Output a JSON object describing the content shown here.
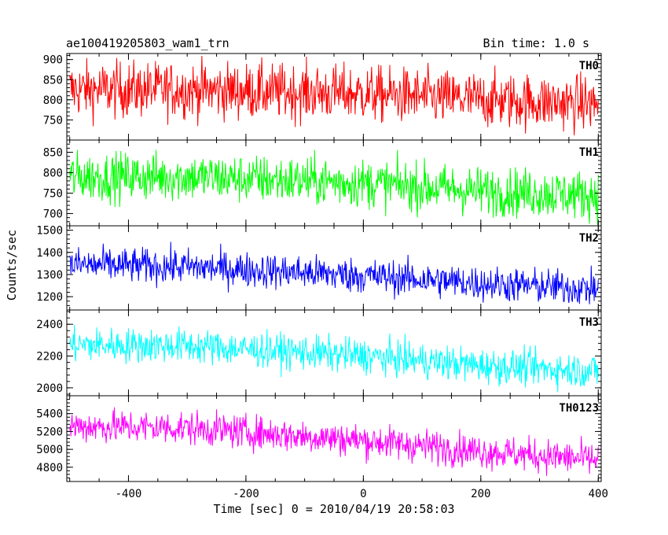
{
  "header": {
    "title": "ae100419205803_wam1_trn",
    "bin_time": "Bin time: 1.0 s"
  },
  "chart_data": {
    "type": "line",
    "xlabel": "Time [sec] 0 = 2010/04/19 20:58:03",
    "ylabel": "Counts/sec",
    "xlim": [
      -505,
      405
    ],
    "xticks": [
      -400,
      -200,
      0,
      200,
      400
    ],
    "x_range": [
      -500,
      400
    ],
    "panels": [
      {
        "name": "TH0",
        "color": "#ff0000",
        "ylim": [
          700,
          915
        ],
        "yticks": [
          750,
          800,
          850,
          900
        ],
        "trend": [
          [
            -500,
            825
          ],
          [
            -300,
            825
          ],
          [
            0,
            815
          ],
          [
            200,
            800
          ],
          [
            400,
            790
          ]
        ],
        "noise": 35
      },
      {
        "name": "TH1",
        "color": "#00ff00",
        "ylim": [
          670,
          880
        ],
        "yticks": [
          700,
          750,
          800,
          850
        ],
        "trend": [
          [
            -500,
            790
          ],
          [
            -300,
            790
          ],
          [
            0,
            775
          ],
          [
            200,
            755
          ],
          [
            400,
            745
          ]
        ],
        "noise": 30
      },
      {
        "name": "TH2",
        "color": "#0000ff",
        "ylim": [
          1140,
          1520
        ],
        "yticks": [
          1200,
          1300,
          1400,
          1500
        ],
        "trend": [
          [
            -500,
            1345
          ],
          [
            -300,
            1335
          ],
          [
            0,
            1295
          ],
          [
            200,
            1260
          ],
          [
            400,
            1235
          ]
        ],
        "noise": 40
      },
      {
        "name": "TH3",
        "color": "#00ffff",
        "ylim": [
          1950,
          2490
        ],
        "yticks": [
          2000,
          2200,
          2400
        ],
        "trend": [
          [
            -500,
            2270
          ],
          [
            -300,
            2265
          ],
          [
            0,
            2200
          ],
          [
            200,
            2140
          ],
          [
            400,
            2105
          ]
        ],
        "noise": 55
      },
      {
        "name": "TH0123",
        "color": "#ff00ff",
        "ylim": [
          4640,
          5600
        ],
        "yticks": [
          4800,
          5000,
          5200,
          5400
        ],
        "trend": [
          [
            -500,
            5260
          ],
          [
            -300,
            5240
          ],
          [
            0,
            5100
          ],
          [
            200,
            4980
          ],
          [
            400,
            4880
          ]
        ],
        "noise": 95
      }
    ]
  }
}
